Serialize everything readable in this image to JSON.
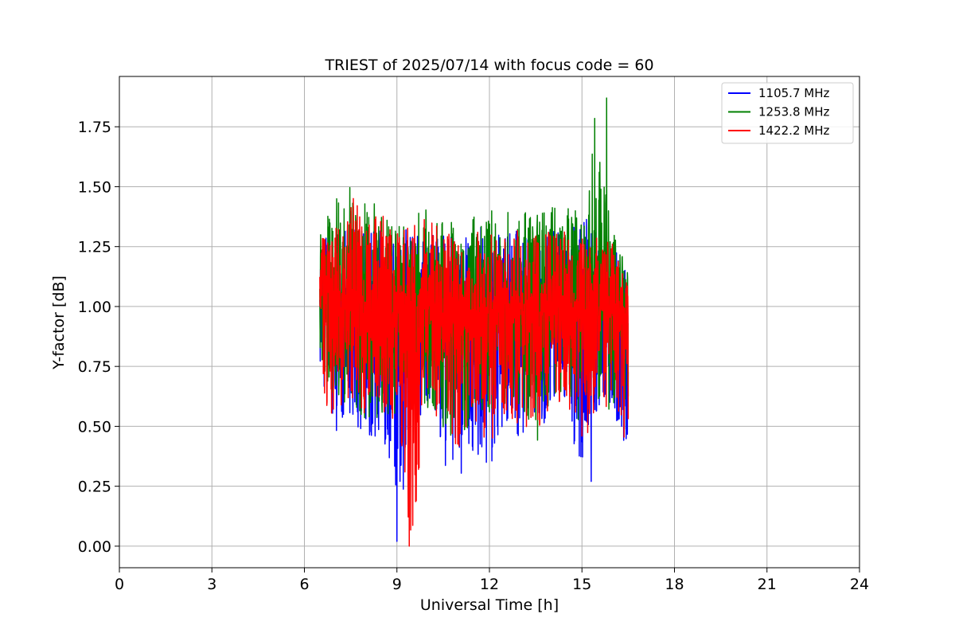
{
  "chart_data": {
    "type": "line",
    "title": "TRIEST of 2025/07/14 with focus code = 60",
    "xlabel": "Universal Time [h]",
    "ylabel": "Y-factor [dB]",
    "xlim": [
      0,
      24
    ],
    "ylim": [
      -0.09,
      1.96
    ],
    "xticks": [
      0,
      3,
      6,
      9,
      12,
      15,
      18,
      21,
      24
    ],
    "xtick_labels": [
      "0",
      "3",
      "6",
      "9",
      "12",
      "15",
      "18",
      "21",
      "24"
    ],
    "yticks": [
      0.0,
      0.25,
      0.5,
      0.75,
      1.0,
      1.25,
      1.5,
      1.75
    ],
    "ytick_labels": [
      "0.00",
      "0.25",
      "0.50",
      "0.75",
      "1.00",
      "1.25",
      "1.50",
      "1.75"
    ],
    "grid": true,
    "legend_position": "top-right",
    "x_range_of_data": [
      6.5,
      16.5
    ],
    "series": [
      {
        "name": "1105.7 MHz",
        "color": "#0000ff",
        "x": [
          6.5,
          7.0,
          7.5,
          8.0,
          8.5,
          9.0,
          9.5,
          10.0,
          10.5,
          11.0,
          11.5,
          12.0,
          12.5,
          13.0,
          13.5,
          14.0,
          14.5,
          15.0,
          15.5,
          16.0,
          16.5
        ],
        "y_min": [
          0.7,
          0.44,
          0.55,
          0.38,
          0.5,
          0.02,
          0.45,
          0.6,
          0.33,
          0.28,
          0.4,
          0.33,
          0.48,
          0.45,
          0.47,
          0.55,
          0.58,
          0.27,
          0.58,
          0.55,
          0.37
        ],
        "y_max": [
          1.28,
          1.3,
          1.33,
          1.3,
          1.35,
          1.3,
          1.35,
          1.3,
          1.3,
          1.28,
          1.33,
          1.35,
          1.3,
          1.33,
          1.3,
          1.33,
          1.33,
          1.41,
          1.3,
          1.28,
          1.12
        ],
        "y_mean": [
          1.0,
          0.98,
          1.0,
          0.97,
          0.98,
          0.95,
          0.98,
          0.98,
          0.95,
          0.93,
          0.97,
          0.98,
          0.96,
          0.97,
          0.96,
          0.98,
          0.98,
          0.97,
          0.98,
          0.96,
          0.95
        ]
      },
      {
        "name": "1253.8 MHz",
        "color": "#008000",
        "x": [
          6.5,
          7.0,
          7.5,
          8.0,
          8.5,
          9.0,
          9.5,
          10.0,
          10.5,
          11.0,
          11.5,
          12.0,
          12.5,
          13.0,
          13.5,
          14.0,
          14.5,
          15.0,
          15.5,
          16.0,
          16.5
        ],
        "y_min": [
          0.75,
          0.58,
          0.6,
          0.42,
          0.55,
          0.55,
          0.58,
          0.55,
          0.48,
          0.4,
          0.55,
          0.55,
          0.58,
          0.55,
          0.4,
          0.62,
          0.6,
          0.5,
          0.62,
          0.55,
          0.4
        ],
        "y_max": [
          1.35,
          1.45,
          1.5,
          1.43,
          1.43,
          1.4,
          1.38,
          1.42,
          1.38,
          1.35,
          1.38,
          1.4,
          1.4,
          1.4,
          1.38,
          1.42,
          1.43,
          1.38,
          1.87,
          1.35,
          1.18
        ],
        "y_mean": [
          1.02,
          1.02,
          1.04,
          1.0,
          1.01,
          1.0,
          1.01,
          1.01,
          0.99,
          0.97,
          1.0,
          1.01,
          1.0,
          1.0,
          0.99,
          1.02,
          1.01,
          1.0,
          1.02,
          0.99,
          0.98
        ]
      },
      {
        "name": "1422.2 MHz",
        "color": "#ff0000",
        "x": [
          6.5,
          7.0,
          7.5,
          8.0,
          8.5,
          9.0,
          9.5,
          10.0,
          10.5,
          11.0,
          11.5,
          12.0,
          12.5,
          13.0,
          13.5,
          14.0,
          14.5,
          15.0,
          15.5,
          16.0,
          16.5
        ],
        "y_min": [
          0.55,
          0.55,
          0.62,
          0.52,
          0.55,
          0.4,
          0.0,
          0.5,
          0.45,
          0.38,
          0.45,
          0.42,
          0.5,
          0.48,
          0.45,
          0.55,
          0.58,
          0.4,
          0.58,
          0.55,
          0.31
        ],
        "y_max": [
          1.28,
          1.32,
          1.47,
          1.4,
          1.38,
          1.35,
          1.35,
          1.37,
          1.32,
          1.3,
          1.33,
          1.35,
          1.3,
          1.33,
          1.3,
          1.32,
          1.33,
          1.3,
          1.32,
          1.27,
          1.08
        ],
        "y_mean": [
          1.0,
          0.99,
          1.01,
          0.98,
          0.99,
          0.97,
          0.98,
          0.99,
          0.97,
          0.95,
          0.98,
          0.99,
          0.97,
          0.98,
          0.97,
          0.99,
          0.99,
          0.98,
          0.99,
          0.97,
          0.96
        ]
      }
    ],
    "notable_points": [
      {
        "series": "1253.8 MHz",
        "x": 15.8,
        "y": 1.87
      },
      {
        "series": "1105.7 MHz",
        "x": 9.0,
        "y": 0.02
      },
      {
        "series": "1422.2 MHz",
        "x": 9.4,
        "y": 0.0
      },
      {
        "series": "1105.7 MHz",
        "x": 15.3,
        "y": 0.27
      }
    ]
  }
}
